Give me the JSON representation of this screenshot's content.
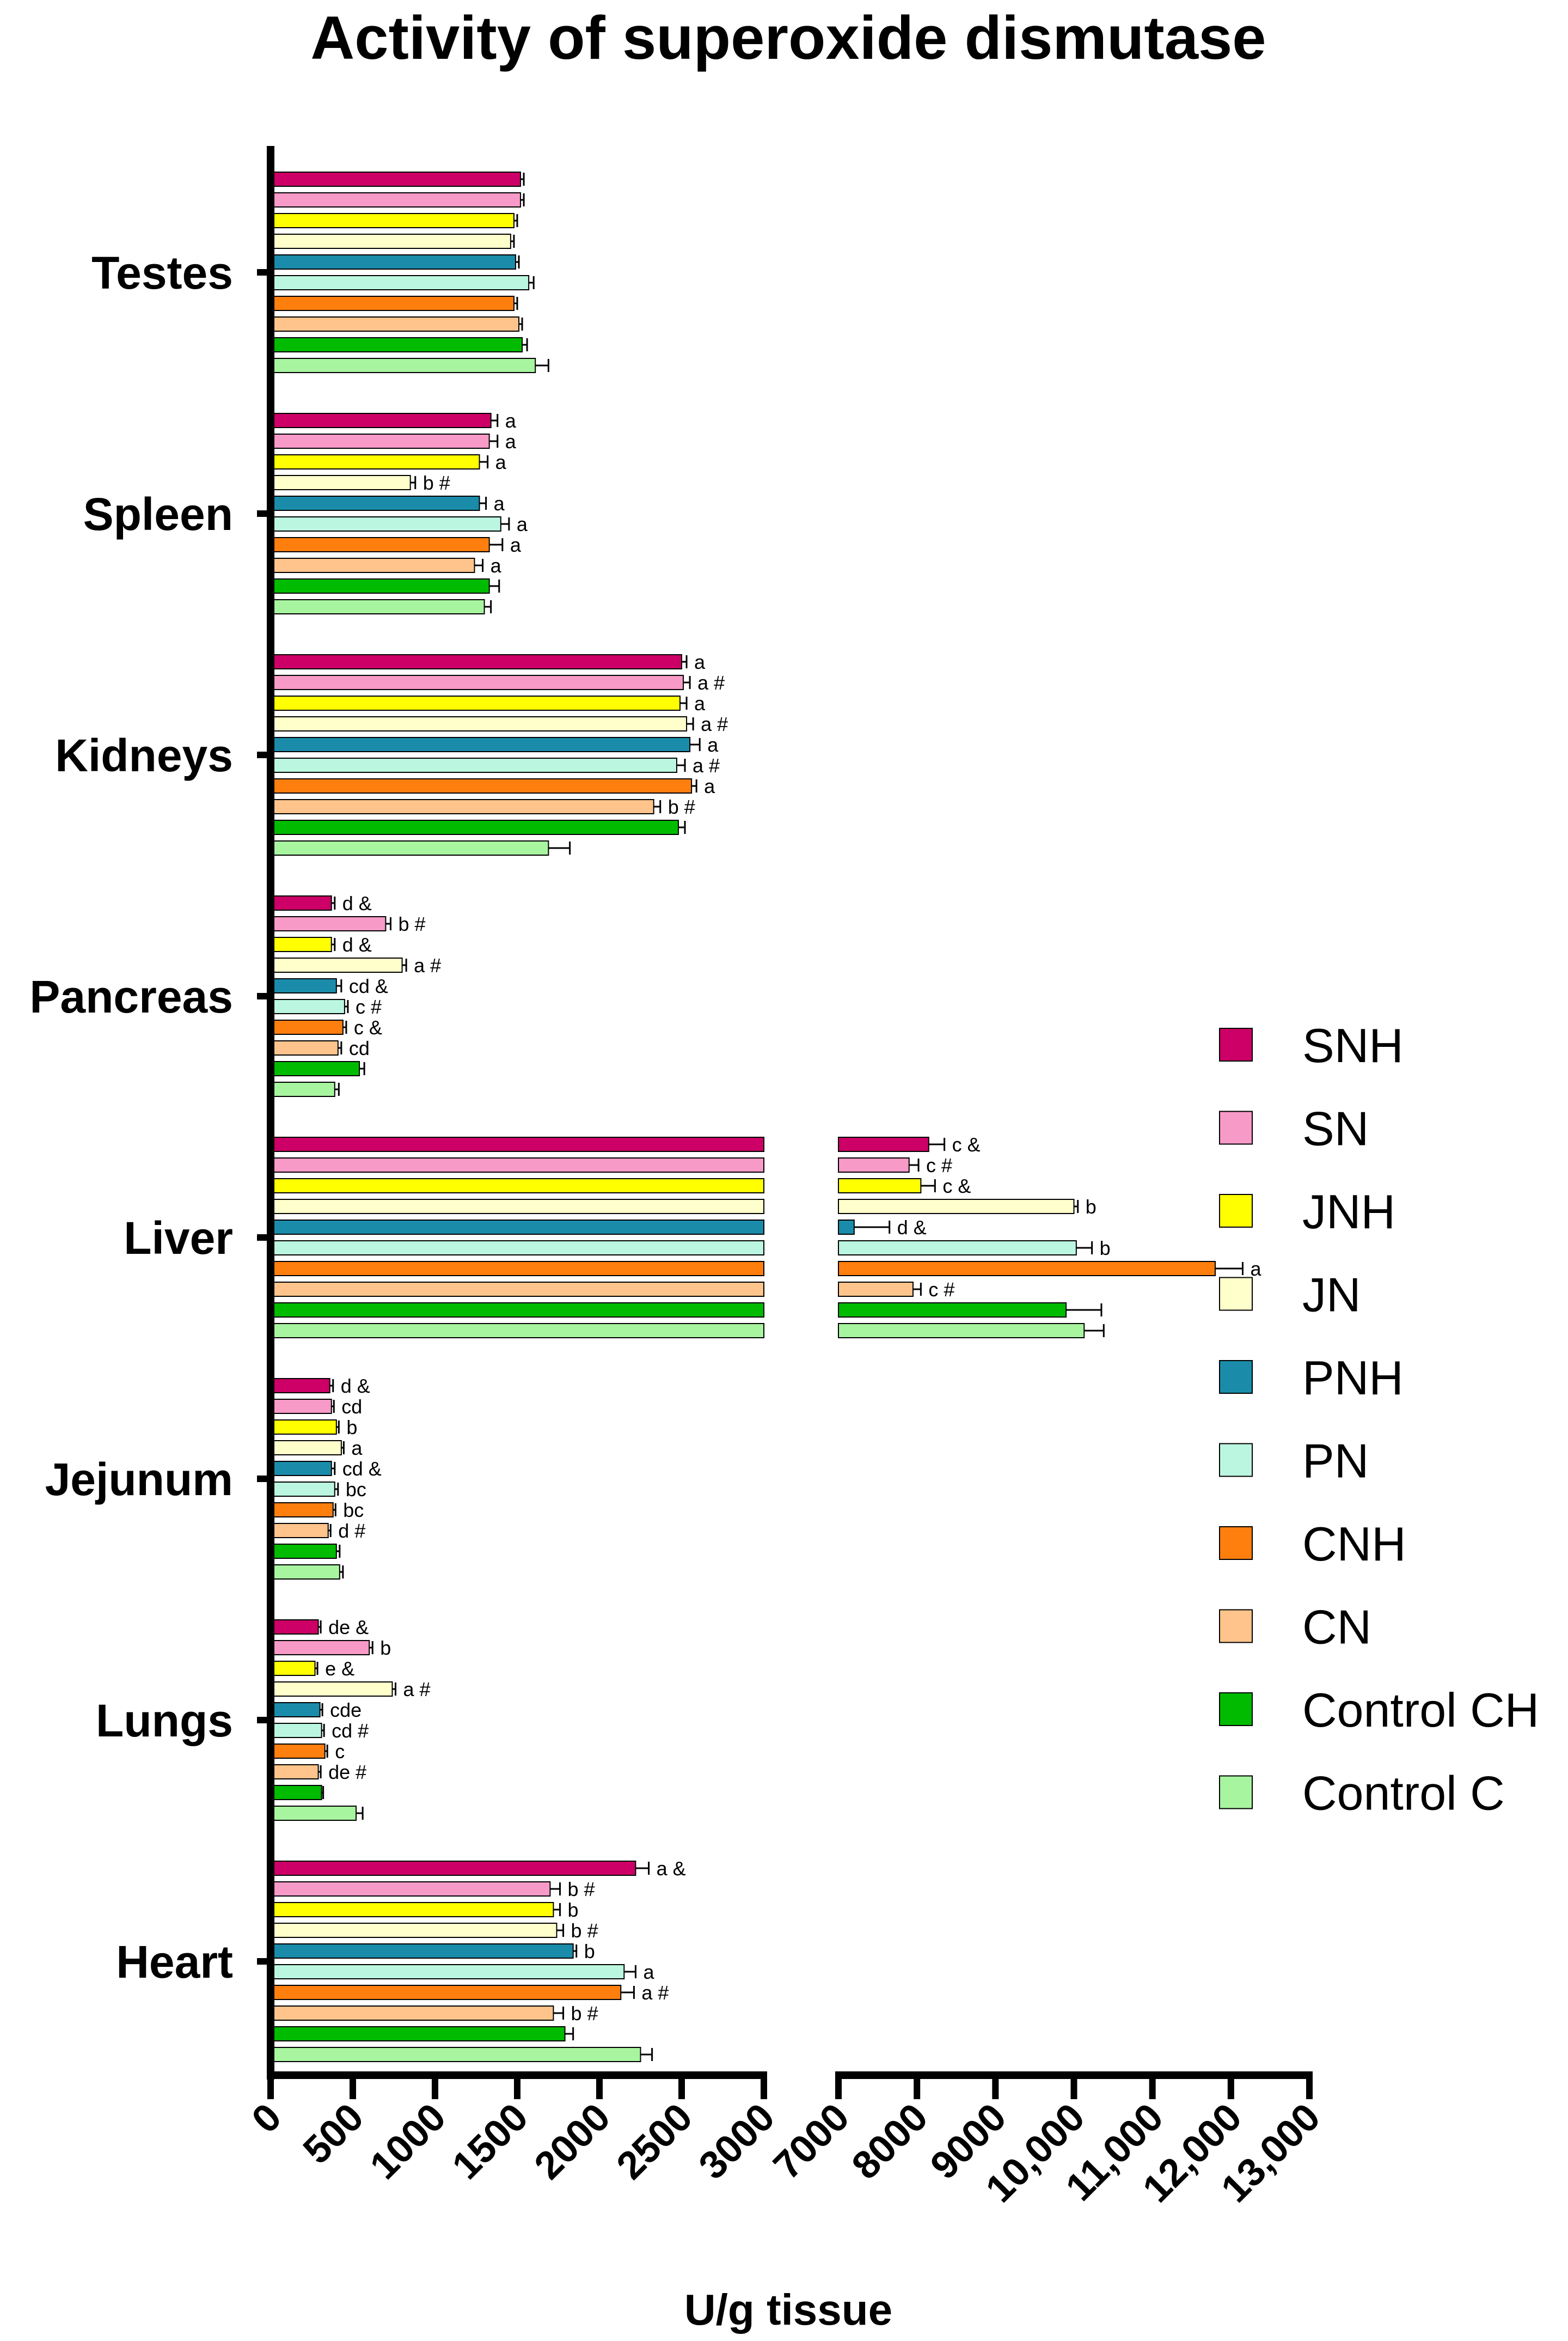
{
  "chart_data": {
    "type": "bar",
    "orientation": "horizontal",
    "title": "Activity of superoxide dismutase",
    "xlabel": "U/g tissue",
    "ylabel": "",
    "axis_break": [
      3000,
      7000
    ],
    "xlim": [
      0,
      13000
    ],
    "xticks": [
      "0",
      "500",
      "1000",
      "1500",
      "2000",
      "2500",
      "3000",
      "7000",
      "8000",
      "9000",
      "10,000",
      "11,000",
      "12,000",
      "13,000"
    ],
    "xtick_values": [
      0,
      500,
      1000,
      1500,
      2000,
      2500,
      3000,
      7000,
      8000,
      9000,
      10000,
      11000,
      12000,
      13000
    ],
    "legend_position": "right",
    "categories": [
      "Testes",
      "Spleen",
      "Kidneys",
      "Pancreas",
      "Liver",
      "Jejunum",
      "Lungs",
      "Heart"
    ],
    "series": [
      {
        "name": "SNH",
        "color": "#CC0066",
        "values": [
          1520,
          1340,
          2500,
          370,
          8150,
          360,
          290,
          2220
        ],
        "errors": [
          20,
          40,
          30,
          20,
          200,
          20,
          15,
          80
        ],
        "annotations": [
          "",
          "a",
          "a",
          "d &",
          "c &",
          "d &",
          "de &",
          "a &"
        ]
      },
      {
        "name": "SN",
        "color": "#F79AC8",
        "values": [
          1520,
          1330,
          2510,
          700,
          7900,
          370,
          600,
          1700
        ],
        "errors": [
          20,
          50,
          40,
          30,
          120,
          15,
          20,
          60
        ],
        "annotations": [
          "",
          "a",
          "a #",
          "b #",
          "c #",
          "cd",
          "b",
          "b #"
        ]
      },
      {
        "name": "JNH",
        "color": "#FFFF00",
        "values": [
          1480,
          1270,
          2490,
          370,
          8050,
          400,
          270,
          1720
        ],
        "errors": [
          20,
          50,
          40,
          20,
          180,
          15,
          15,
          40
        ],
        "annotations": [
          "",
          "a",
          "a",
          "d &",
          "c &",
          "b",
          "e &",
          "b"
        ]
      },
      {
        "name": "JN",
        "color": "#FFFFCC",
        "values": [
          1460,
          850,
          2530,
          800,
          10000,
          430,
          740,
          1740
        ],
        "errors": [
          20,
          30,
          40,
          25,
          50,
          15,
          20,
          40
        ],
        "annotations": [
          "",
          "b #",
          "a #",
          "a #",
          "b",
          "a",
          "a #",
          "b #"
        ]
      },
      {
        "name": "PNH",
        "color": "#1A8CAA",
        "values": [
          1490,
          1270,
          2550,
          400,
          7200,
          370,
          300,
          1840
        ],
        "errors": [
          20,
          40,
          60,
          30,
          450,
          20,
          15,
          20
        ],
        "annotations": [
          "",
          "a",
          "a",
          "cd &",
          "d &",
          "cd &",
          "cde",
          "b"
        ]
      },
      {
        "name": "PN",
        "color": "#BBF7E0",
        "values": [
          1570,
          1400,
          2470,
          450,
          10030,
          390,
          310,
          2150
        ],
        "errors": [
          30,
          50,
          50,
          20,
          200,
          20,
          15,
          70
        ],
        "annotations": [
          "",
          "a",
          "a #",
          "c #",
          "b",
          "bc",
          "cd #",
          "a"
        ]
      },
      {
        "name": "CNH",
        "color": "#FF7F0E",
        "values": [
          1480,
          1330,
          2560,
          440,
          11800,
          380,
          330,
          2130
        ],
        "errors": [
          20,
          80,
          30,
          20,
          350,
          15,
          15,
          80
        ],
        "annotations": [
          "",
          "a",
          "a",
          "c &",
          "a",
          "bc",
          "c",
          "a #"
        ]
      },
      {
        "name": "CN",
        "color": "#FFC48C",
        "values": [
          1510,
          1240,
          2330,
          410,
          7950,
          350,
          290,
          1720
        ],
        "errors": [
          20,
          50,
          40,
          20,
          100,
          15,
          15,
          60
        ],
        "annotations": [
          "",
          "a",
          "b #",
          "cd",
          "c #",
          "d #",
          "de #",
          "b #"
        ]
      },
      {
        "name": "Control CH",
        "color": "#00BB00",
        "values": [
          1530,
          1330,
          2480,
          540,
          9900,
          400,
          310,
          1790
        ],
        "errors": [
          30,
          60,
          40,
          30,
          450,
          20,
          10,
          50
        ],
        "annotations": [
          "",
          "",
          "",
          "",
          "",
          "",
          "",
          ""
        ]
      },
      {
        "name": "Control C",
        "color": "#A8F5A0",
        "values": [
          1610,
          1300,
          1690,
          390,
          10130,
          420,
          520,
          2250
        ],
        "errors": [
          80,
          40,
          130,
          25,
          250,
          20,
          40,
          70
        ],
        "annotations": [
          "",
          "",
          "",
          "",
          "",
          "",
          "",
          ""
        ]
      }
    ]
  }
}
